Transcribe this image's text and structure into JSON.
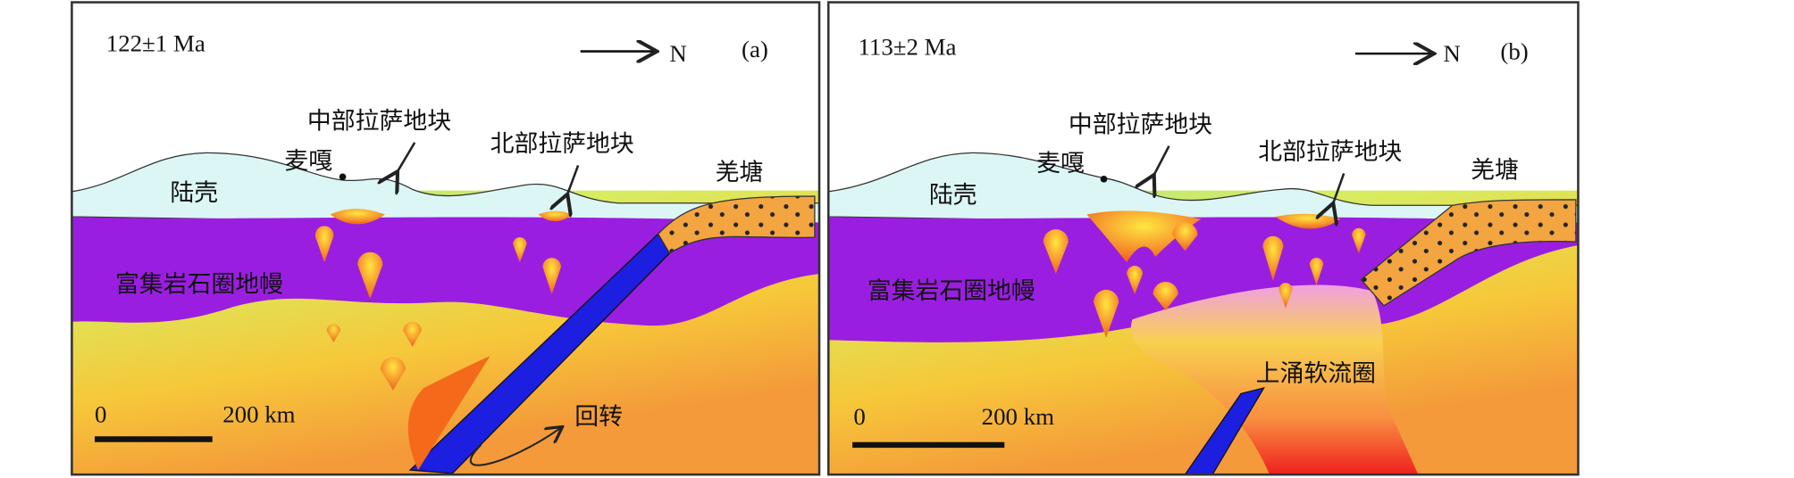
{
  "panels": [
    {
      "age": "122±1 Ma",
      "north": "N",
      "label": "(a)",
      "central_lhasa": "中部拉萨地块",
      "maga": "麦嘎",
      "north_lhasa": "北部拉萨地块",
      "qiangtang": "羌塘",
      "crust": "陆壳",
      "mantle": "富集岩石圈地幔",
      "process": "回转",
      "scale_zero": "0",
      "scale_distance": "200 km"
    },
    {
      "age": "113±2 Ma",
      "north": "N",
      "label": "(b)",
      "central_lhasa": "中部拉萨地块",
      "maga": "麦嘎",
      "north_lhasa": "北部拉萨地块",
      "qiangtang": "羌塘",
      "crust": "陆壳",
      "mantle": "富集岩石圈地幔",
      "process": "上涌软流圈",
      "scale_zero": "0",
      "scale_distance": "200 km"
    }
  ]
}
